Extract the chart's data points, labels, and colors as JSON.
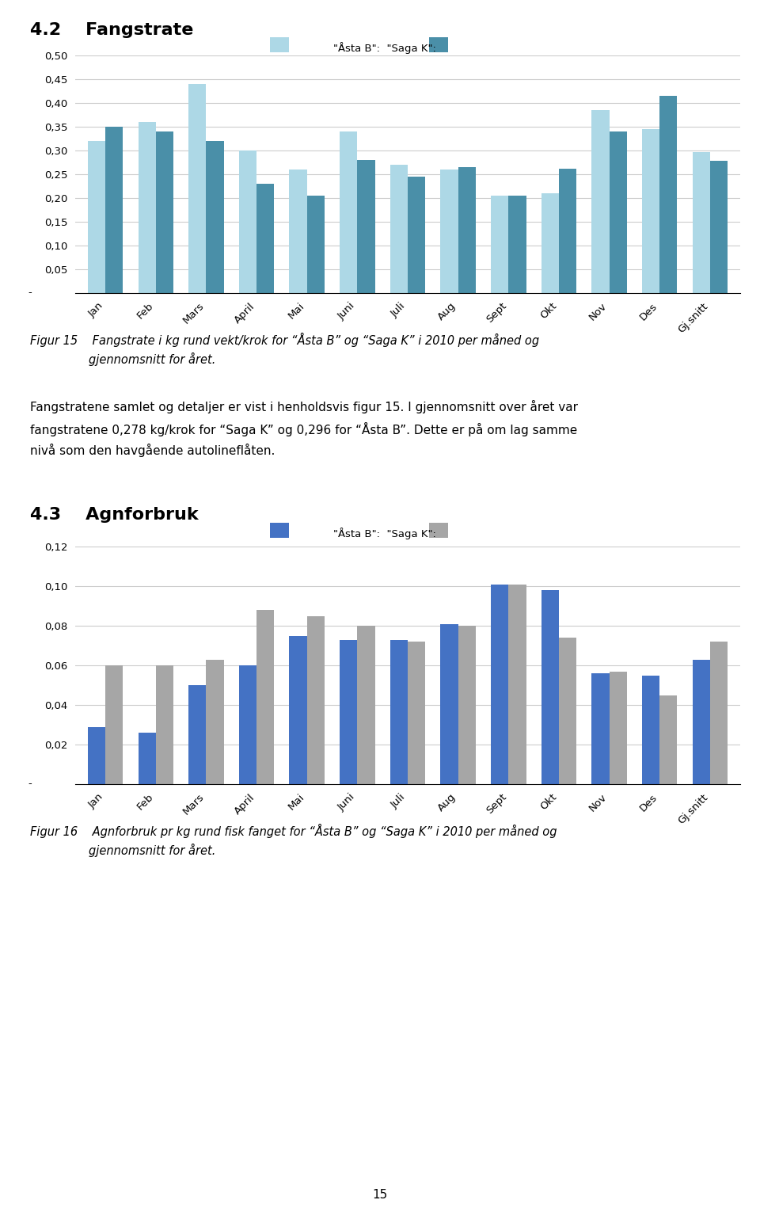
{
  "categories": [
    "Jan",
    "Feb",
    "Mars",
    "April",
    "Mai",
    "Juni",
    "Juli",
    "Aug",
    "Sept",
    "Okt",
    "Nov",
    "Des",
    "Gj.snitt"
  ],
  "chart1": {
    "section_heading": "4.2    Fangstrate",
    "legend_label1": "\"Åsta B\":",
    "legend_label2": "\"Saga K\":",
    "color1": "#add8e6",
    "color2": "#4a8fa8",
    "aasta_b": [
      0.32,
      0.36,
      0.44,
      0.3,
      0.26,
      0.34,
      0.27,
      0.26,
      0.205,
      0.21,
      0.385,
      0.345,
      0.296
    ],
    "saga_k": [
      0.35,
      0.34,
      0.32,
      0.23,
      0.205,
      0.28,
      0.245,
      0.265,
      0.205,
      0.262,
      0.34,
      0.415,
      0.278
    ],
    "ylim": [
      0,
      0.5
    ],
    "yticks": [
      0.05,
      0.1,
      0.15,
      0.2,
      0.25,
      0.3,
      0.35,
      0.4,
      0.45,
      0.5
    ],
    "ytick_labels": [
      "0,05",
      "0,10",
      "0,15",
      "0,20",
      "0,25",
      "0,30",
      "0,35",
      "0,40",
      "0,45",
      "0,50"
    ],
    "zero_label": "-"
  },
  "chart2": {
    "section_heading": "4.3    Agnforbruk",
    "legend_label1": "\"Åsta B\":",
    "legend_label2": "\"Saga K\":",
    "color1": "#4472c4",
    "color2": "#a6a6a6",
    "aasta_b": [
      0.029,
      0.026,
      0.05,
      0.06,
      0.075,
      0.073,
      0.073,
      0.081,
      0.101,
      0.098,
      0.056,
      0.055,
      0.063
    ],
    "saga_k": [
      0.06,
      0.06,
      0.063,
      0.088,
      0.085,
      0.08,
      0.072,
      0.08,
      0.101,
      0.074,
      0.057,
      0.045,
      0.072
    ],
    "ylim": [
      0,
      0.12
    ],
    "yticks": [
      0.02,
      0.04,
      0.06,
      0.08,
      0.1,
      0.12
    ],
    "ytick_labels": [
      "0,02",
      "0,04",
      "0,06",
      "0,08",
      "0,10",
      "0,12"
    ],
    "zero_label": "-"
  },
  "figur15_line1": "Figur 15    Fangstrate i kg rund vekt/krok for “Åsta B” og “Saga K” i 2010 per måned og",
  "figur15_line2": "                gjennomsnitt for året.",
  "text_line1": "Fangstratene samlet og detaljer er vist i henholdsvis figur 15. I gjennomsnitt over året var",
  "text_line2": "fangstratene 0,278 kg/krok for “Saga K” og 0,296 for “Åsta B”. Dette er på om lag samme",
  "text_line3": "nivå som den havgående autolineflåten.",
  "figur16_line1": "Figur 16    Agnforbruk pr kg rund fisk fanget for “Åsta B” og “Saga K” i 2010 per måned og",
  "figur16_line2": "                gjennomsnitt for året.",
  "page_number": "15",
  "background_color": "#ffffff",
  "grid_color": "#cccccc",
  "bar_width": 0.35,
  "section_fontsize": 16,
  "tick_fontsize": 9.5,
  "legend_fontsize": 9.5,
  "caption_fontsize": 10.5,
  "body_fontsize": 11
}
